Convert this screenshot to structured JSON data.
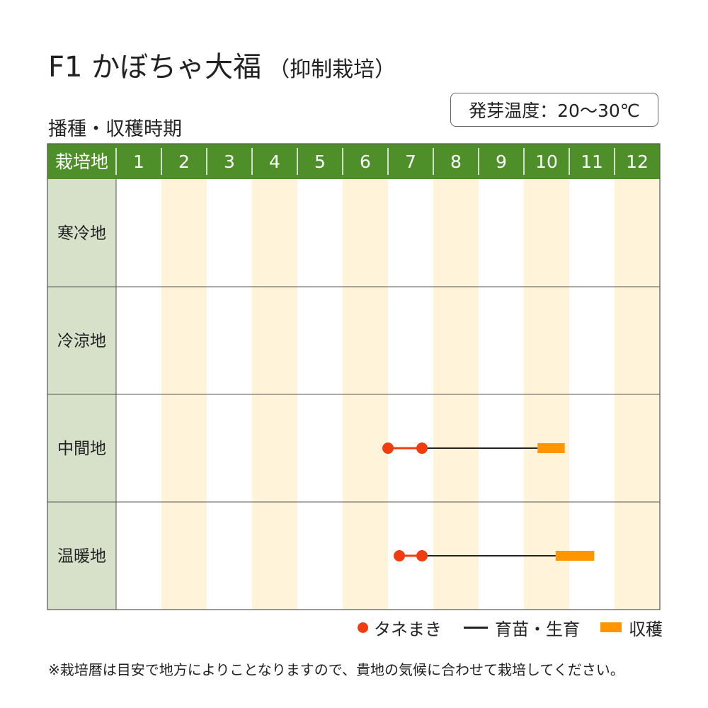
{
  "title": {
    "main": "F1 かぼちゃ大福",
    "sub": "（抑制栽培）"
  },
  "temperature": "発芽温度：20～30℃",
  "subtitle": "播種・収穫時期",
  "chart_data": {
    "type": "table",
    "header_label": "栽培地",
    "months": [
      "1",
      "2",
      "3",
      "4",
      "5",
      "6",
      "7",
      "8",
      "9",
      "10",
      "11",
      "12"
    ],
    "regions": [
      {
        "name": "寒冷地",
        "sowing": [],
        "growing": null,
        "harvest": null
      },
      {
        "name": "冷涼地",
        "sowing": [],
        "growing": null,
        "harvest": null
      },
      {
        "name": "中間地",
        "sowing": [
          7.0,
          7.75
        ],
        "growing": [
          7.75,
          10.3
        ],
        "harvest": [
          10.3,
          10.9
        ]
      },
      {
        "name": "温暖地",
        "sowing": [
          7.25,
          7.75
        ],
        "growing": [
          7.75,
          10.7
        ],
        "harvest": [
          10.7,
          11.55
        ]
      }
    ],
    "colors": {
      "header": "#4e8f2a",
      "region_col": "#d7e0c8",
      "stripe": "#fff4d9",
      "sowing": "#f03c0f",
      "growing": "#222222",
      "harvest": "#ff9500",
      "border": "#555555"
    }
  },
  "legend": {
    "sowing": "タネまき",
    "growing": "育苗・生育",
    "harvest": "収穫"
  },
  "note": "※栽培暦は目安で地方によりことなりますので、貴地の気候に合わせて栽培してください。"
}
